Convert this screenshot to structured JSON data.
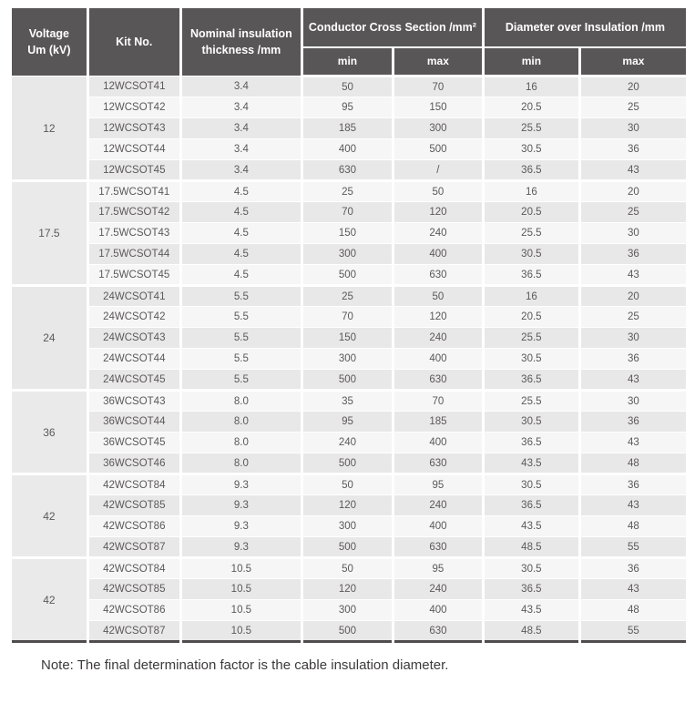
{
  "colors": {
    "header_bg": "#595657",
    "header_text": "#ffffff",
    "row_dark": "#e9e8e8",
    "row_light": "#f6f6f6",
    "voltage_bg": "#eaeaea",
    "cell_text": "#5b5859",
    "bottom_rule": "#4f4c4d",
    "note_text": "#3d3a3b"
  },
  "table": {
    "header": {
      "voltage_line1": "Voltage",
      "voltage_line2": "Um (kV)",
      "kit": "Kit No.",
      "nominal_line1": "Nominal insulation",
      "nominal_line2": "thickness /mm",
      "conductor": "Conductor Cross Section /mm²",
      "diameter": "Diameter over Insulation /mm",
      "min": "min",
      "max": "max"
    },
    "column_keys": [
      "kit_no",
      "thickness",
      "ccs_min",
      "ccs_max",
      "dia_min",
      "dia_max"
    ],
    "groups": [
      {
        "voltage": "12",
        "rows": [
          [
            "12WCSOT41",
            "3.4",
            "50",
            "70",
            "16",
            "20"
          ],
          [
            "12WCSOT42",
            "3.4",
            "95",
            "150",
            "20.5",
            "25"
          ],
          [
            "12WCSOT43",
            "3.4",
            "185",
            "300",
            "25.5",
            "30"
          ],
          [
            "12WCSOT44",
            "3.4",
            "400",
            "500",
            "30.5",
            "36"
          ],
          [
            "12WCSOT45",
            "3.4",
            "630",
            "/",
            "36.5",
            "43"
          ]
        ]
      },
      {
        "voltage": "17.5",
        "rows": [
          [
            "17.5WCSOT41",
            "4.5",
            "25",
            "50",
            "16",
            "20"
          ],
          [
            "17.5WCSOT42",
            "4.5",
            "70",
            "120",
            "20.5",
            "25"
          ],
          [
            "17.5WCSOT43",
            "4.5",
            "150",
            "240",
            "25.5",
            "30"
          ],
          [
            "17.5WCSOT44",
            "4.5",
            "300",
            "400",
            "30.5",
            "36"
          ],
          [
            "17.5WCSOT45",
            "4.5",
            "500",
            "630",
            "36.5",
            "43"
          ]
        ]
      },
      {
        "voltage": "24",
        "rows": [
          [
            "24WCSOT41",
            "5.5",
            "25",
            "50",
            "16",
            "20"
          ],
          [
            "24WCSOT42",
            "5.5",
            "70",
            "120",
            "20.5",
            "25"
          ],
          [
            "24WCSOT43",
            "5.5",
            "150",
            "240",
            "25.5",
            "30"
          ],
          [
            "24WCSOT44",
            "5.5",
            "300",
            "400",
            "30.5",
            "36"
          ],
          [
            "24WCSOT45",
            "5.5",
            "500",
            "630",
            "36.5",
            "43"
          ]
        ]
      },
      {
        "voltage": "36",
        "rows": [
          [
            "36WCSOT43",
            "8.0",
            "35",
            "70",
            "25.5",
            "30"
          ],
          [
            "36WCSOT44",
            "8.0",
            "95",
            "185",
            "30.5",
            "36"
          ],
          [
            "36WCSOT45",
            "8.0",
            "240",
            "400",
            "36.5",
            "43"
          ],
          [
            "36WCSOT46",
            "8.0",
            "500",
            "630",
            "43.5",
            "48"
          ]
        ]
      },
      {
        "voltage": "42",
        "rows": [
          [
            "42WCSOT84",
            "9.3",
            "50",
            "95",
            "30.5",
            "36"
          ],
          [
            "42WCSOT85",
            "9.3",
            "120",
            "240",
            "36.5",
            "43"
          ],
          [
            "42WCSOT86",
            "9.3",
            "300",
            "400",
            "43.5",
            "48"
          ],
          [
            "42WCSOT87",
            "9.3",
            "500",
            "630",
            "48.5",
            "55"
          ]
        ]
      },
      {
        "voltage": "42",
        "rows": [
          [
            "42WCSOT84",
            "10.5",
            "50",
            "95",
            "30.5",
            "36"
          ],
          [
            "42WCSOT85",
            "10.5",
            "120",
            "240",
            "36.5",
            "43"
          ],
          [
            "42WCSOT86",
            "10.5",
            "300",
            "400",
            "43.5",
            "48"
          ],
          [
            "42WCSOT87",
            "10.5",
            "500",
            "630",
            "48.5",
            "55"
          ]
        ]
      }
    ]
  },
  "note": "Note: The final determination factor is the cable insulation diameter."
}
